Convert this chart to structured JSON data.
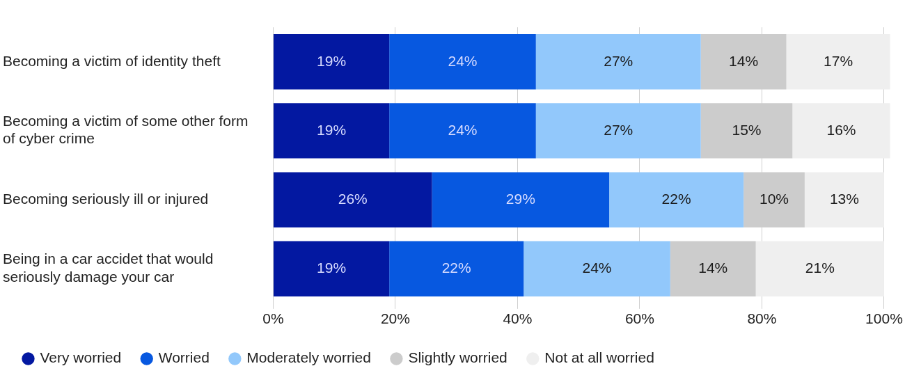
{
  "chart_data": {
    "type": "bar",
    "orientation": "horizontal",
    "stacked": true,
    "categories": [
      "Becoming a victim of identity theft",
      "Becoming a victim of some other form of cyber crime",
      "Becoming seriously ill or injured",
      "Being in a car accidet that would seriously damage your car"
    ],
    "series": [
      {
        "name": "Very worried",
        "color": "#0318a1",
        "values": [
          19,
          19,
          26,
          19
        ],
        "value_labels": [
          "19%",
          "19%",
          "26%",
          "19%"
        ]
      },
      {
        "name": "Worried",
        "color": "#0758e0",
        "values": [
          24,
          24,
          29,
          22
        ],
        "value_labels": [
          "24%",
          "24%",
          "29%",
          "22%"
        ]
      },
      {
        "name": "Moderately worried",
        "color": "#92c8fb",
        "values": [
          27,
          27,
          22,
          24
        ],
        "value_labels": [
          "27%",
          "27%",
          "22%",
          "24%"
        ]
      },
      {
        "name": "Slightly worried",
        "color": "#cccccc",
        "values": [
          14,
          15,
          10,
          14
        ],
        "value_labels": [
          "14%",
          "15%",
          "10%",
          "14%"
        ]
      },
      {
        "name": "Not at all worried",
        "color": "#efefef",
        "values": [
          17,
          16,
          13,
          21
        ],
        "value_labels": [
          "17%",
          "16%",
          "13%",
          "21%"
        ]
      }
    ],
    "xlim": [
      0,
      101
    ],
    "xticks": [
      {
        "value": 0,
        "label": "0%"
      },
      {
        "value": 20,
        "label": "20%"
      },
      {
        "value": 40,
        "label": "40%"
      },
      {
        "value": 60,
        "label": "60%"
      },
      {
        "value": 80,
        "label": "80%"
      },
      {
        "value": 100,
        "label": "100%"
      }
    ],
    "grid": "x",
    "legend": "bottom"
  }
}
